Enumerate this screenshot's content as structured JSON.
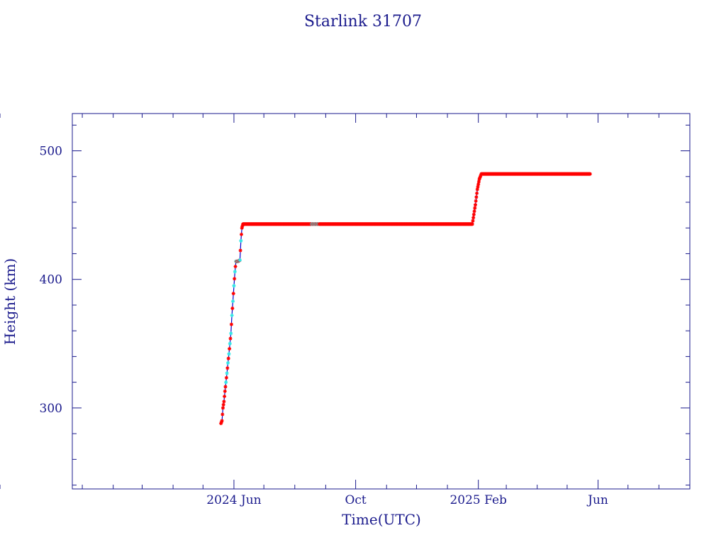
{
  "colors": {
    "frame": "#1a1a8c",
    "line": "#0000cc",
    "points_main": "#ff0000",
    "points_alt": "#33e6e6",
    "background": "#ffffff"
  },
  "chart_data": {
    "type": "line",
    "title": "Starlink 31707",
    "xlabel": "Time(UTC)",
    "ylabel": "Height (km)",
    "ylim": [
      237,
      529
    ],
    "xlim": [
      "2023-12-22",
      "2025-09-01"
    ],
    "y_ticks": [
      300,
      400,
      500
    ],
    "y_tick_labels": [
      "300",
      "400",
      "500"
    ],
    "x_tick_labels": [
      {
        "date": "2024-06-01",
        "label": "2024 Jun"
      },
      {
        "date": "2024-10-01",
        "label": "Oct"
      },
      {
        "date": "2025-02-01",
        "label": "2025 Feb"
      },
      {
        "date": "2025-06-01",
        "label": "Jun"
      }
    ],
    "grid": false,
    "series": [
      {
        "points": [
          [
            "2024-05-19",
            288
          ],
          [
            "2024-05-20",
            290
          ],
          [
            "2024-05-21",
            300
          ],
          [
            "2024-05-22",
            305
          ],
          [
            "2024-05-23",
            313
          ],
          [
            "2024-05-24",
            320
          ],
          [
            "2024-05-25",
            327
          ],
          [
            "2024-05-26",
            335
          ],
          [
            "2024-05-27",
            342
          ],
          [
            "2024-05-28",
            350
          ],
          [
            "2024-05-29",
            358
          ],
          [
            "2024-05-30",
            372
          ],
          [
            "2024-05-31",
            383
          ],
          [
            "2024-06-01",
            395
          ],
          [
            "2024-06-02",
            406
          ],
          [
            "2024-06-03",
            414
          ],
          [
            "2024-06-05",
            414
          ],
          [
            "2024-06-07",
            415
          ],
          [
            "2024-06-08",
            430
          ],
          [
            "2024-06-09",
            440
          ],
          [
            "2024-06-10",
            443
          ],
          [
            "2024-08-18",
            443
          ],
          [
            "2024-08-25",
            443
          ],
          [
            "2024-10-01",
            443
          ],
          [
            "2024-12-01",
            443
          ],
          [
            "2025-01-26",
            443
          ],
          [
            "2025-01-27",
            448
          ],
          [
            "2025-01-29",
            458
          ],
          [
            "2025-01-31",
            470
          ],
          [
            "2025-02-02",
            478
          ],
          [
            "2025-02-04",
            482
          ],
          [
            "2025-03-15",
            482
          ],
          [
            "2025-04-20",
            482
          ],
          [
            "2025-05-24",
            482
          ]
        ]
      }
    ],
    "alt_marker_ranges": [
      [
        "2024-05-24",
        "2024-06-08"
      ],
      [
        "2024-08-18",
        "2024-08-25"
      ]
    ]
  }
}
